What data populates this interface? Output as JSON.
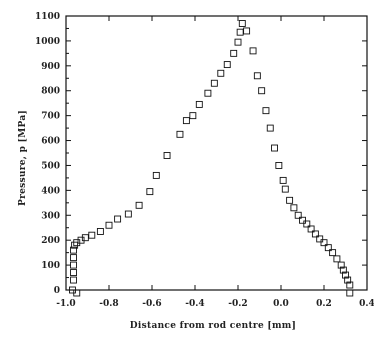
{
  "chart_data": {
    "type": "scatter",
    "xlabel": "Distance from rod centre [mm]",
    "ylabel": "Pressure, p [MPa]",
    "xlim": [
      -1.0,
      0.4
    ],
    "ylim": [
      0,
      1100
    ],
    "x_ticks": [
      -1.0,
      -0.8,
      -0.6,
      -0.4,
      -0.2,
      0.0,
      0.2,
      0.4
    ],
    "x_tick_labels": [
      "-1.0",
      "-0.8",
      "-0.6",
      "-0.4",
      "-0.2",
      "0.0",
      "0.2",
      "0.4"
    ],
    "y_ticks": [
      0,
      100,
      200,
      300,
      400,
      500,
      600,
      700,
      800,
      900,
      1000,
      1100
    ],
    "y_tick_labels": [
      "0",
      "100",
      "200",
      "300",
      "400",
      "500",
      "600",
      "700",
      "800",
      "900",
      "1000",
      "1100"
    ],
    "marker": "open-square",
    "grid": false,
    "series": [
      {
        "x": [
          -0.97,
          -0.965,
          -0.965,
          -0.965,
          -0.965,
          -0.965,
          -0.96,
          -0.95,
          -0.93,
          -0.91,
          -0.88,
          -0.84,
          -0.8,
          -0.76,
          -0.71,
          -0.66,
          -0.61,
          -0.58,
          -0.53,
          -0.47,
          -0.44,
          -0.41,
          -0.38,
          -0.34,
          -0.31,
          -0.28,
          -0.25,
          -0.22,
          -0.2,
          -0.19,
          -0.18,
          -0.16,
          -0.13,
          -0.11,
          -0.09,
          -0.07,
          -0.05,
          -0.03,
          -0.01,
          0.01,
          0.02,
          0.04,
          0.06,
          0.08,
          0.1,
          0.12,
          0.14,
          0.16,
          0.18,
          0.2,
          0.22,
          0.24,
          0.26,
          0.28,
          0.29,
          0.3,
          0.31,
          0.32,
          -0.95,
          0.32
        ],
        "y": [
          0,
          40,
          70,
          100,
          130,
          160,
          180,
          190,
          200,
          210,
          220,
          235,
          260,
          285,
          305,
          340,
          395,
          460,
          540,
          625,
          680,
          700,
          745,
          790,
          830,
          870,
          905,
          950,
          995,
          1035,
          1070,
          1040,
          960,
          860,
          800,
          720,
          650,
          570,
          500,
          440,
          405,
          360,
          330,
          300,
          280,
          265,
          245,
          225,
          205,
          190,
          170,
          150,
          125,
          100,
          80,
          60,
          40,
          20,
          -12,
          -12
        ]
      }
    ]
  }
}
